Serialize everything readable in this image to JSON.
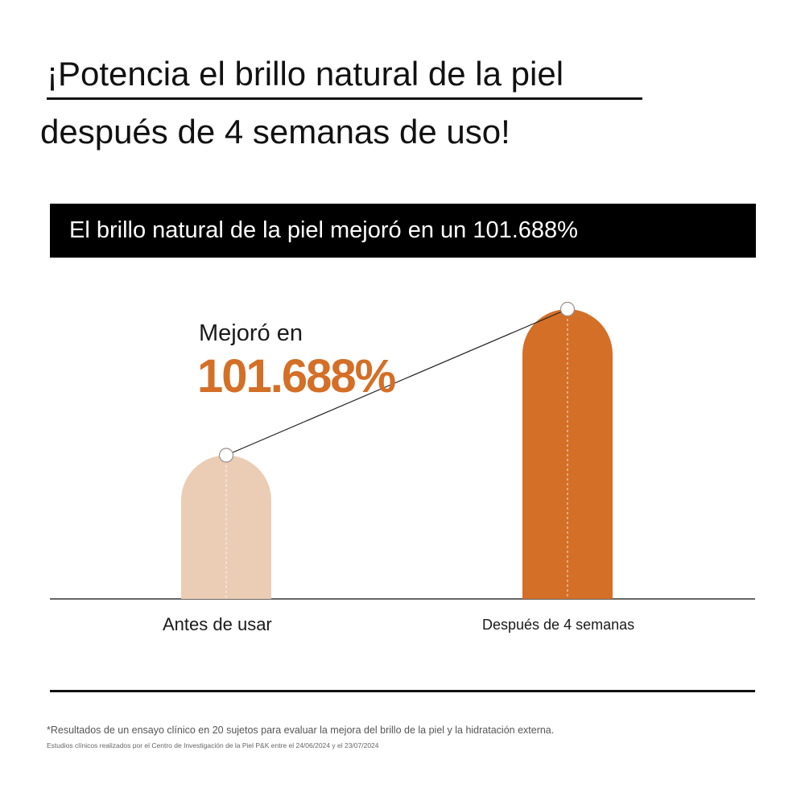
{
  "headline": {
    "line1": "¡Potencia el brillo natural de la piel",
    "line2": "después de 4 semanas de uso!"
  },
  "banner": {
    "text": "El brillo natural de la piel mejoró en un 101.688%"
  },
  "callout": {
    "label": "Mejoró en",
    "value": "101.688%"
  },
  "colors": {
    "before_bar": "#ebcdb5",
    "after_bar": "#d46f27",
    "accent_text": "#d46f27",
    "banner_bg": "#000000"
  },
  "chart_data": {
    "type": "bar",
    "categories": [
      "Antes de usar",
      "Después de 4 semanas"
    ],
    "values": [
      100,
      201.688
    ],
    "title": "",
    "xlabel": "",
    "ylabel": "",
    "ylim": [
      0,
      201.688
    ],
    "annotation": "Mejoró en 101.688%",
    "grid": false
  },
  "footnotes": {
    "line1": "*Resultados de un ensayo clínico en 20 sujetos para evaluar la mejora del brillo de la piel y la hidratación externa.",
    "line2": "Estudios clínicos realizados por el Centro de Investigación de la Piel P&K entre el 24/06/2024 y el 23/07/2024"
  }
}
